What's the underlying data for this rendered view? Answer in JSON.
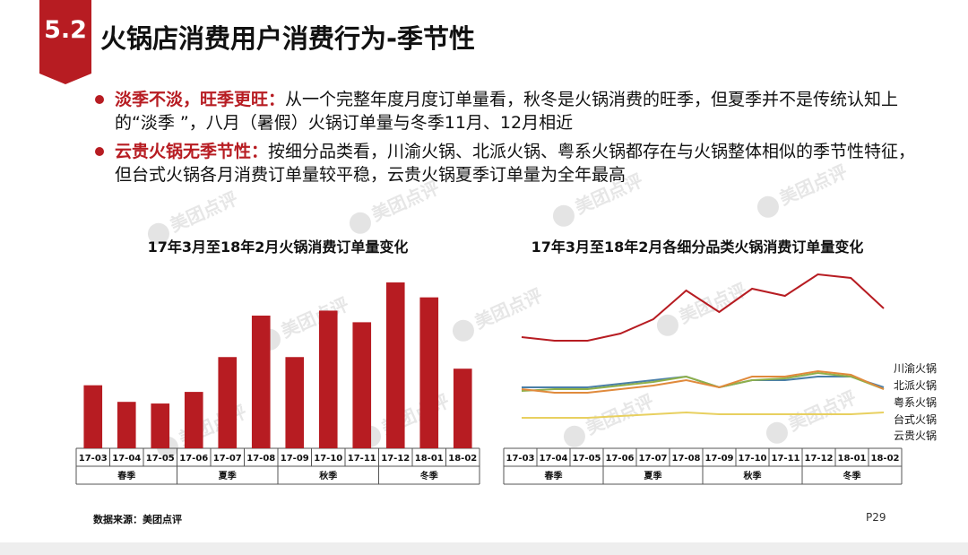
{
  "header": {
    "section_number": "5.2",
    "title": "火锅店消费用户消费行为-季节性"
  },
  "bullets": [
    {
      "highlight": "淡季不淡，旺季更旺：",
      "text": "从一个完整年度月度订单量看，秋冬是火锅消费的旺季，但夏季并不是传统认知上的“淡季 ”，八月（暑假）火锅订单量与冬季11月、12月相近"
    },
    {
      "highlight": "云贵火锅无季节性：",
      "text": "按细分品类看，川渝火锅、北派火锅、粤系火锅都存在与火锅整体相似的季节性特征，但台式火锅各月消费订单量较平稳，云贵火锅夏季订单量为全年最高"
    }
  ],
  "watermark": "美团点评",
  "colors": {
    "accent": "#b71c22",
    "bar": "#b71c22"
  },
  "chart_data": [
    {
      "type": "bar",
      "title": "17年3月至18年2月火锅消费订单量变化",
      "categories": [
        "17-03",
        "17-04",
        "17-05",
        "17-06",
        "17-07",
        "17-08",
        "17-09",
        "17-10",
        "17-11",
        "17-12",
        "18-01",
        "18-02"
      ],
      "values": [
        38,
        28,
        27,
        34,
        55,
        80,
        55,
        83,
        76,
        100,
        91,
        48
      ],
      "seasons": [
        {
          "label": "春季",
          "span": 3
        },
        {
          "label": "夏季",
          "span": 3
        },
        {
          "label": "秋季",
          "span": 3
        },
        {
          "label": "冬季",
          "span": 3
        }
      ],
      "ylim": [
        0,
        100
      ],
      "xlabel": "",
      "ylabel": ""
    },
    {
      "type": "line",
      "title": "17年3月至18年2月各细分品类火锅消费订单量变化",
      "categories": [
        "17-03",
        "17-04",
        "17-05",
        "17-06",
        "17-07",
        "17-08",
        "17-09",
        "17-10",
        "17-11",
        "17-12",
        "18-01",
        "18-02"
      ],
      "series": [
        {
          "name": "川渝火锅",
          "color": "#b71c22",
          "values": [
            62,
            60,
            60,
            64,
            72,
            88,
            76,
            89,
            85,
            97,
            95,
            78
          ]
        },
        {
          "name": "北派火锅",
          "color": "#4a7fa8",
          "values": [
            34,
            34,
            34,
            36,
            38,
            40,
            34,
            38,
            38,
            40,
            40,
            34
          ]
        },
        {
          "name": "粤系火锅",
          "color": "#8fb04a",
          "values": [
            32,
            33,
            33,
            35,
            37,
            40,
            34,
            38,
            39,
            42,
            40,
            33
          ]
        },
        {
          "name": "台式火锅",
          "color": "#e08a3c",
          "values": [
            33,
            31,
            31,
            33,
            35,
            38,
            34,
            40,
            40,
            43,
            41,
            33
          ]
        },
        {
          "name": "云贵火锅",
          "color": "#e8d060",
          "values": [
            17,
            17,
            17,
            18,
            19,
            20,
            19,
            19,
            19,
            19,
            19,
            20
          ]
        }
      ],
      "seasons": [
        {
          "label": "春季",
          "span": 3
        },
        {
          "label": "夏季",
          "span": 3
        },
        {
          "label": "秋季",
          "span": 3
        },
        {
          "label": "冬季",
          "span": 3
        }
      ],
      "ylim": [
        0,
        100
      ],
      "xlabel": "",
      "ylabel": ""
    }
  ],
  "footer": {
    "source": "数据来源：美团点评",
    "page": "P29"
  }
}
